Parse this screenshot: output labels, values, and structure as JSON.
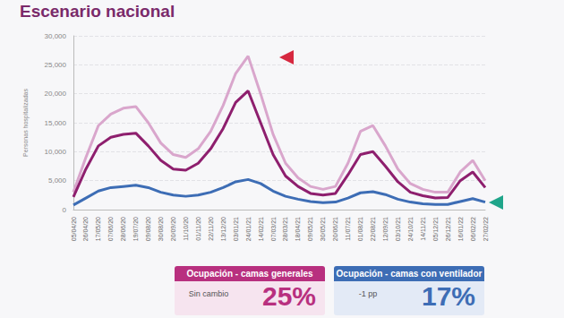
{
  "chart_data": {
    "type": "line",
    "title": "Escenario nacional",
    "y_label": "Personas hospitalizadas",
    "categories": [
      "05/04/20",
      "26/04/20",
      "17/05/20",
      "07/06/20",
      "28/06/20",
      "19/07/20",
      "09/08/20",
      "30/08/20",
      "20/09/20",
      "11/10/20",
      "01/11/20",
      "22/11/20",
      "13/12/20",
      "03/01/21",
      "24/01/21",
      "14/02/21",
      "07/03/21",
      "28/03/21",
      "18/04/21",
      "09/05/21",
      "30/05/21",
      "20/06/21",
      "11/07/21",
      "01/08/21",
      "22/08/21",
      "12/09/21",
      "03/10/21",
      "24/10/21",
      "14/11/21",
      "05/12/21",
      "26/12/21",
      "16/01/22",
      "06/02/22",
      "27/02/22"
    ],
    "series": [
      {
        "color": "#d9a6cc",
        "values": [
          3000,
          9000,
          14500,
          16500,
          17500,
          17800,
          15000,
          11500,
          9500,
          9000,
          10500,
          13500,
          18000,
          23500,
          26500,
          20000,
          13000,
          8000,
          5500,
          4000,
          3500,
          4000,
          8000,
          13500,
          14500,
          11000,
          7000,
          4500,
          3500,
          3000,
          3000,
          6500,
          8500,
          5000
        ]
      },
      {
        "color": "#8e1f6e",
        "values": [
          2200,
          7000,
          11000,
          12500,
          13000,
          13200,
          11000,
          8500,
          7000,
          6800,
          8000,
          10500,
          14000,
          18500,
          20500,
          15000,
          9500,
          5800,
          4000,
          2800,
          2500,
          2800,
          6000,
          9500,
          10000,
          7500,
          4800,
          3000,
          2400,
          2000,
          2100,
          5000,
          6500,
          3800
        ]
      },
      {
        "color": "#3d6db5",
        "values": [
          800,
          2000,
          3200,
          3800,
          4000,
          4200,
          3800,
          3000,
          2500,
          2300,
          2500,
          3000,
          3800,
          4800,
          5200,
          4500,
          3200,
          2300,
          1800,
          1400,
          1200,
          1300,
          2000,
          2900,
          3100,
          2600,
          1800,
          1300,
          1000,
          900,
          900,
          1400,
          1900,
          1300
        ]
      }
    ],
    "ylim": [
      0,
      30000
    ],
    "yticks": [
      0,
      {
        "value": 5000,
        "label": "5,000"
      },
      {
        "value": 10000,
        "label": "10,000"
      },
      {
        "value": 15000,
        "label": "15,000"
      },
      {
        "value": 20000,
        "label": "20,000"
      },
      {
        "value": 25000,
        "label": "25,000"
      },
      {
        "value": 30000,
        "label": "30,000"
      }
    ],
    "grid": true,
    "annotations": [
      {
        "title": "Ocupación - camas generales",
        "note": "Sin cambio",
        "text": "25%",
        "color": "#b8307f"
      },
      {
        "title": "Ocupación - camas con ventilador",
        "note": "-1 pp",
        "text": "17%",
        "color": "#3d6db5"
      }
    ]
  }
}
